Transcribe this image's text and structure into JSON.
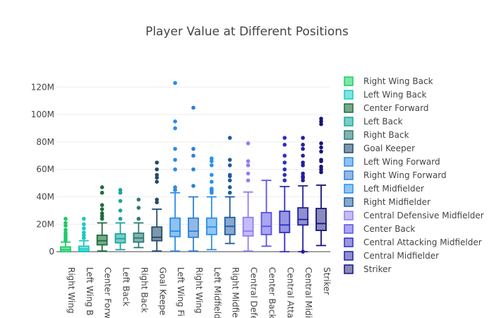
{
  "chart_data": {
    "type": "box",
    "title": "Player Value at Different Positions",
    "xlabel": "",
    "ylabel": "",
    "ylim": [
      -3000000,
      132000000
    ],
    "yticks": [
      0,
      20000000,
      40000000,
      60000000,
      80000000,
      100000000,
      120000000
    ],
    "ytick_labels": [
      "0",
      "20M",
      "40M",
      "60M",
      "80M",
      "100M",
      "120M"
    ],
    "grid": true,
    "legend_position": "right",
    "series": [
      {
        "name": "Right Wing Back",
        "tick_label": "Right Wing",
        "color": "#1fca6a",
        "fill": "#7fe6a9",
        "q1": 0,
        "median": 1500000,
        "q3": 3500000,
        "whisker_low": 0,
        "whisker_high": 7000000,
        "outliers": [
          8000000,
          9500000,
          11000000,
          12500000,
          14000000,
          16000000,
          19000000,
          21000000,
          24000000
        ]
      },
      {
        "name": "Left Wing Back",
        "tick_label": "Left Wing B",
        "color": "#19c9c0",
        "fill": "#7ee5e0",
        "q1": 500000,
        "median": 2000000,
        "q3": 4000000,
        "whisker_low": 0,
        "whisker_high": 8000000,
        "outliers": [
          10000000,
          12000000,
          14000000,
          17000000,
          20000000,
          24000000
        ]
      },
      {
        "name": "Center Forward",
        "tick_label": "Center Forw",
        "color": "#1d6e3c",
        "fill": "#76a98a",
        "q1": 5000000,
        "median": 8000000,
        "q3": 12000000,
        "whisker_low": 500000,
        "whisker_high": 21000000,
        "outliers": [
          24000000,
          26000000,
          28000000,
          31000000,
          34000000,
          43000000,
          47000000
        ]
      },
      {
        "name": "Left Back",
        "tick_label": "Left Back",
        "color": "#1aa59d",
        "fill": "#78cdc8",
        "q1": 6500000,
        "median": 9500000,
        "q3": 13000000,
        "whisker_low": 1500000,
        "whisker_high": 21000000,
        "outliers": [
          24000000,
          30000000,
          37000000,
          43000000,
          45000000
        ]
      },
      {
        "name": "Right Back",
        "tick_label": "Right Back",
        "color": "#2d7a74",
        "fill": "#82b3af",
        "q1": 7000000,
        "median": 10000000,
        "q3": 13500000,
        "whisker_low": 3000000,
        "whisker_high": 21000000,
        "outliers": [
          24000000,
          32000000,
          38000000
        ]
      },
      {
        "name": "Goal Keeper",
        "tick_label": "Goal Keepe",
        "color": "#234b6b",
        "fill": "#7f97ab",
        "q1": 8000000,
        "median": 10500000,
        "q3": 18000000,
        "whisker_low": 500000,
        "whisker_high": 31000000,
        "outliers": [
          36000000,
          38000000,
          51000000,
          54000000,
          56000000,
          60000000,
          65000000
        ]
      },
      {
        "name": "Left Wing Forward",
        "tick_label": "Left Wing Fi",
        "color": "#2a8ce8",
        "fill": "#8fc2f3",
        "q1": 11000000,
        "median": 15000000,
        "q3": 24500000,
        "whisker_low": 500000,
        "whisker_high": 43000000,
        "outliers": [
          45000000,
          47000000,
          60000000,
          67000000,
          75000000,
          90000000,
          95000000,
          123000000
        ]
      },
      {
        "name": "Right Wing Forward",
        "tick_label": "Right Wing",
        "color": "#2f7fd6",
        "fill": "#92b9e6",
        "q1": 10500000,
        "median": 15000000,
        "q3": 24500000,
        "whisker_low": 500000,
        "whisker_high": 40000000,
        "outliers": [
          48000000,
          60000000,
          70000000,
          75000000,
          105000000
        ]
      },
      {
        "name": "Left Midfielder",
        "tick_label": "Left Midfield",
        "color": "#2a90ea",
        "fill": "#91c5f4",
        "q1": 12500000,
        "median": 18000000,
        "q3": 24500000,
        "whisker_low": 1500000,
        "whisker_high": 40000000,
        "outliers": [
          43000000,
          44000000,
          45000000,
          46000000,
          51000000,
          56000000,
          63000000,
          66000000,
          68000000
        ]
      },
      {
        "name": "Right Midfielder",
        "tick_label": "Right Midfie",
        "color": "#1f5aa0",
        "fill": "#87a8cf",
        "q1": 12500000,
        "median": 18500000,
        "q3": 25000000,
        "whisker_low": 6000000,
        "whisker_high": 40000000,
        "outliers": [
          43000000,
          47000000,
          52000000,
          55000000,
          56000000,
          63000000,
          67000000,
          83000000
        ]
      },
      {
        "name": "Central Defensive Midfielder",
        "tick_label": "Central Defe",
        "color": "#8e7ef1",
        "fill": "#c5bcf8",
        "q1": 11500000,
        "median": 15000000,
        "q3": 25000000,
        "whisker_low": 500000,
        "whisker_high": 43500000,
        "outliers": [
          52000000,
          57000000,
          63000000,
          66000000,
          79000000
        ]
      },
      {
        "name": "Center Back",
        "tick_label": "Center Back",
        "color": "#5a52e4",
        "fill": "#aaa6f1",
        "q1": 12500000,
        "median": 18500000,
        "q3": 28500000,
        "whisker_low": 4000000,
        "whisker_high": 52000000,
        "outliers": []
      },
      {
        "name": "Central Attacking Midfielder",
        "tick_label": "Central Atta",
        "color": "#2f2ec6",
        "fill": "#9796e3",
        "q1": 14000000,
        "median": 19500000,
        "q3": 29500000,
        "whisker_low": 0,
        "whisker_high": 47500000,
        "outliers": [
          52000000,
          56000000,
          60000000,
          65000000,
          70000000,
          78000000,
          83000000
        ]
      },
      {
        "name": "Central Midfielder",
        "tick_label": "Central Midi",
        "color": "#20209e",
        "fill": "#8f8fd0",
        "q1": 19500000,
        "median": 23500000,
        "q3": 32000000,
        "whisker_low": 0,
        "whisker_high": 48000000,
        "outliers": [
          52000000,
          54000000,
          55000000,
          57000000,
          63000000,
          65000000,
          70000000,
          75000000,
          78000000,
          83000000,
          0
        ]
      },
      {
        "name": "Striker",
        "tick_label": "Striker",
        "color": "#15157a",
        "fill": "#8a8abd",
        "q1": 15500000,
        "median": 20500000,
        "q3": 31500000,
        "whisker_low": 4500000,
        "whisker_high": 48500000,
        "outliers": [
          58000000,
          60000000,
          62000000,
          66000000,
          67000000,
          73000000,
          76000000,
          79000000,
          93000000,
          95000000,
          97000000
        ]
      }
    ]
  }
}
